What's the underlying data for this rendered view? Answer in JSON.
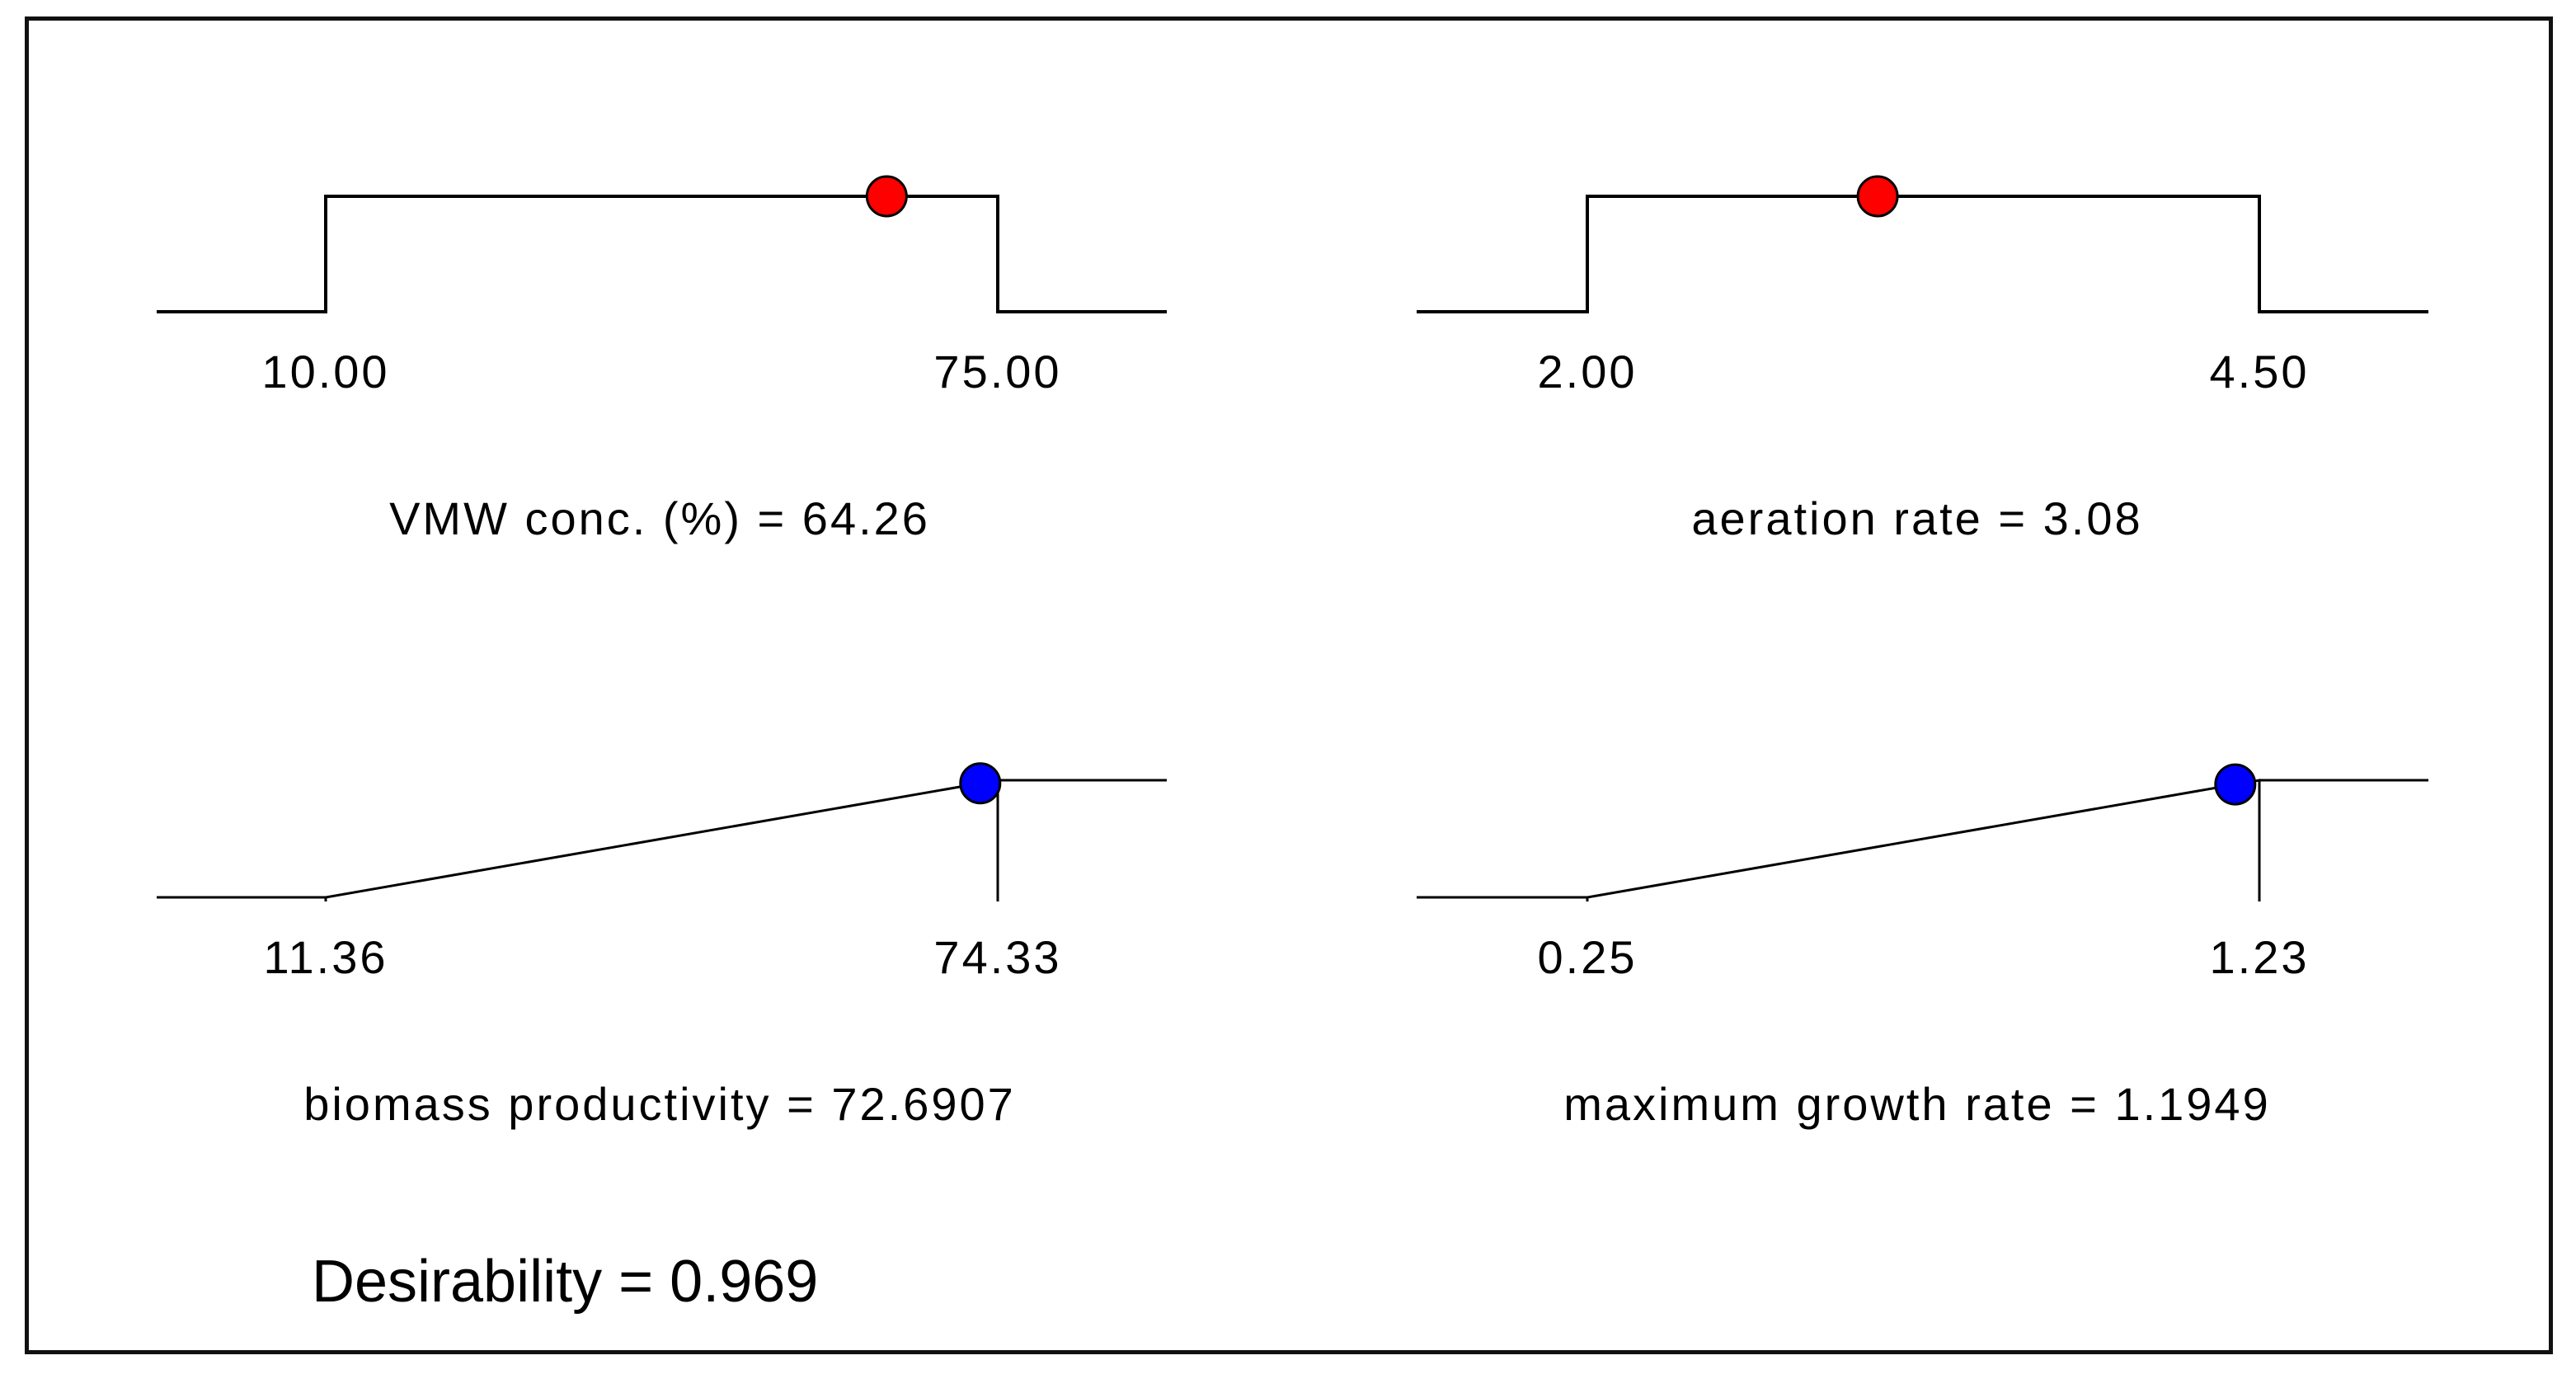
{
  "chart_data": [
    {
      "type": "line",
      "kind": "factor",
      "name": "VMW conc. (%)",
      "low": 10.0,
      "high": 75.0,
      "low_label": "10.00",
      "high_label": "75.00",
      "value": 64.26,
      "label": "VMW conc. (%) = 64.26",
      "color": "#ff0000"
    },
    {
      "type": "line",
      "kind": "factor",
      "name": "aeration rate",
      "low": 2.0,
      "high": 4.5,
      "low_label": "2.00",
      "high_label": "4.50",
      "value": 3.08,
      "label": "aeration rate = 3.08",
      "color": "#ff0000"
    },
    {
      "type": "line",
      "kind": "response",
      "name": "biomass productivity",
      "low": 11.36,
      "high": 74.33,
      "low_label": "11.36",
      "high_label": "74.33",
      "value": 72.6907,
      "label": "biomass productivity = 72.6907",
      "color": "#0000ff"
    },
    {
      "type": "line",
      "kind": "response",
      "name": "maximum growth rate",
      "low": 0.25,
      "high": 1.23,
      "low_label": "0.25",
      "high_label": "1.23",
      "value": 1.1949,
      "label": "maximum growth rate = 1.1949",
      "color": "#0000ff"
    }
  ],
  "desirability": {
    "value": 0.969,
    "label": "Desirability = 0.969"
  }
}
